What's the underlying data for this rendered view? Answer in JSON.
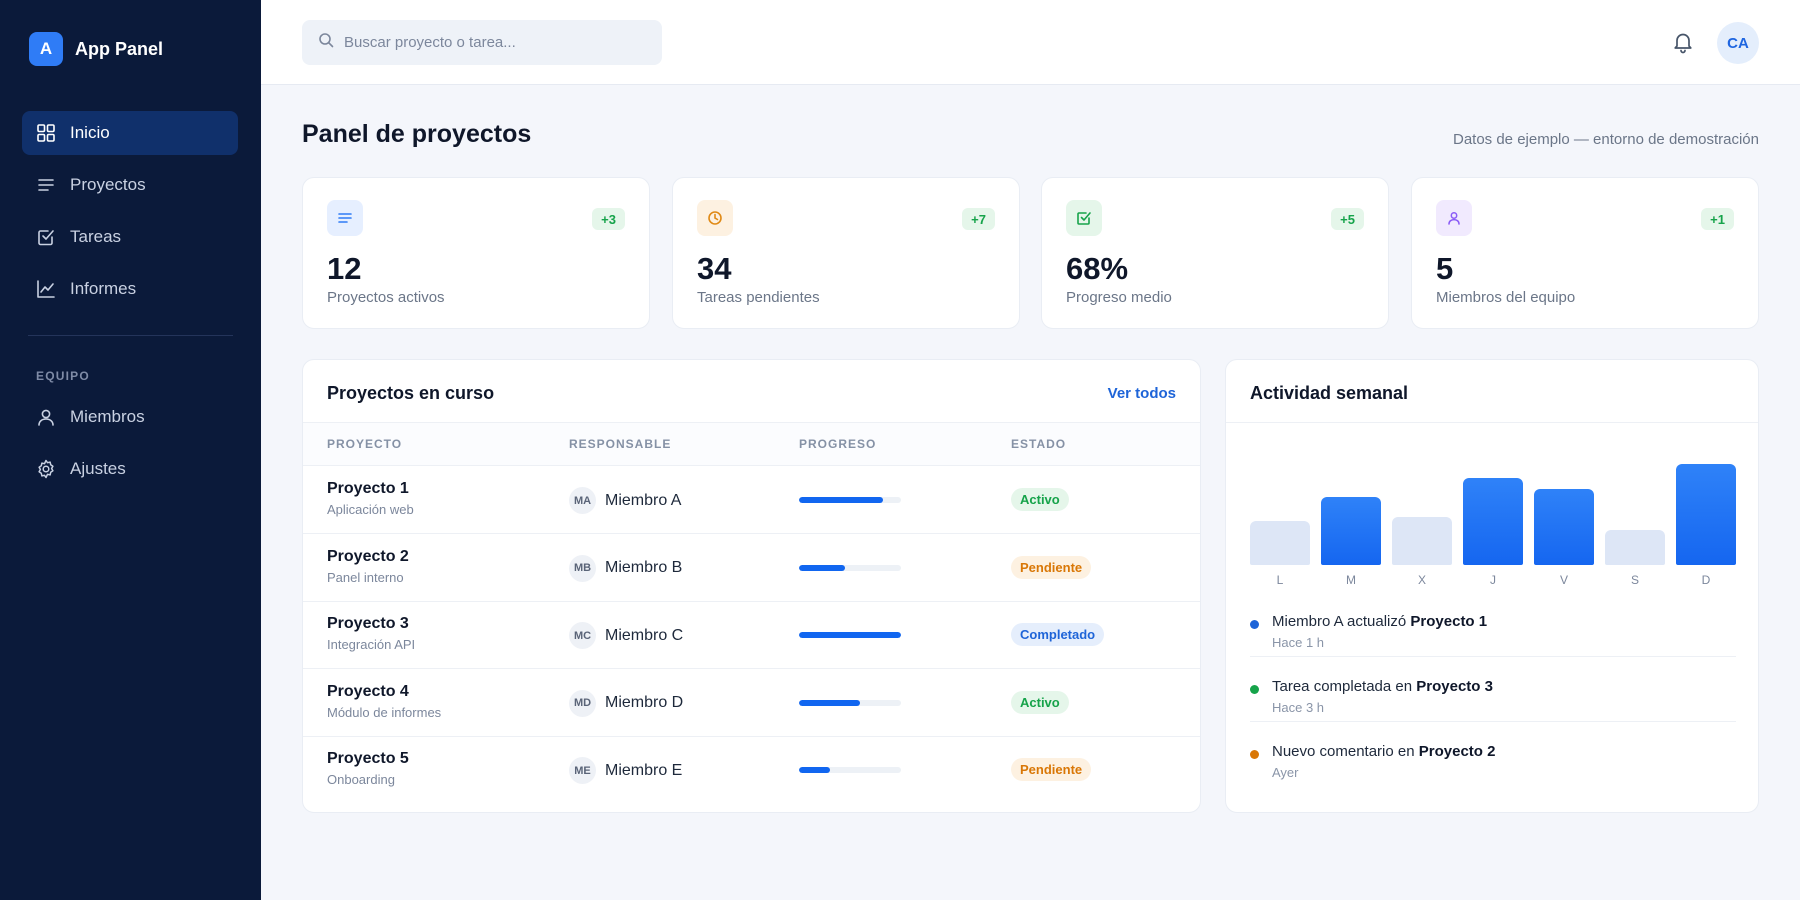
{
  "brand": {
    "logo_letter": "A",
    "name": "App Panel"
  },
  "sidebar": {
    "items": [
      {
        "label": "Inicio",
        "icon": "grid-icon",
        "active": true
      },
      {
        "label": "Proyectos",
        "icon": "list-icon"
      },
      {
        "label": "Tareas",
        "icon": "checkbox-icon"
      },
      {
        "label": "Informes",
        "icon": "chart-line-icon"
      }
    ],
    "section_label": "EQUIPO",
    "team_items": [
      {
        "label": "Miembros",
        "icon": "user-icon"
      },
      {
        "label": "Ajustes",
        "icon": "gear-icon"
      }
    ]
  },
  "header": {
    "search_placeholder": "Buscar proyecto o tarea...",
    "avatar_initials": "CA"
  },
  "page": {
    "title": "Panel de proyectos",
    "note": "Datos de ejemplo — entorno de demostración"
  },
  "stats": [
    {
      "value": "12",
      "label": "Proyectos activos",
      "delta": "+3",
      "icon": "list-icon",
      "color": "#2f7cf6"
    },
    {
      "value": "34",
      "label": "Tareas pendientes",
      "delta": "+7",
      "icon": "clock-icon",
      "color": "#e08a16"
    },
    {
      "value": "68%",
      "label": "Progreso medio",
      "delta": "+5",
      "icon": "checkbox-icon",
      "color": "#16a34a"
    },
    {
      "value": "5",
      "label": "Miembros del equipo",
      "delta": "+1",
      "icon": "user-icon",
      "color": "#8b5cf6"
    }
  ],
  "projects": {
    "title": "Proyectos en curso",
    "view_all": "Ver todos",
    "columns": [
      "PROYECTO",
      "RESPONSABLE",
      "PROGRESO",
      "ESTADO"
    ],
    "rows": [
      {
        "name": "Proyecto 1",
        "sub": "Aplicación web",
        "initials": "MA",
        "owner": "Miembro A",
        "progress": 0.82,
        "status": "Activo",
        "status_kind": "activo"
      },
      {
        "name": "Proyecto 2",
        "sub": "Panel interno",
        "initials": "MB",
        "owner": "Miembro B",
        "progress": 0.45,
        "status": "Pendiente",
        "status_kind": "pend"
      },
      {
        "name": "Proyecto 3",
        "sub": "Integración API",
        "initials": "MC",
        "owner": "Miembro C",
        "progress": 1.0,
        "status": "Completado",
        "status_kind": "comp"
      },
      {
        "name": "Proyecto 4",
        "sub": "Módulo de informes",
        "initials": "MD",
        "owner": "Miembro D",
        "progress": 0.6,
        "status": "Activo",
        "status_kind": "activo"
      },
      {
        "name": "Proyecto 5",
        "sub": "Onboarding",
        "initials": "ME",
        "owner": "Miembro E",
        "progress": 0.3,
        "status": "Pendiente",
        "status_kind": "pend"
      }
    ]
  },
  "activity": {
    "title": "Actividad semanal",
    "chart_data": {
      "type": "bar",
      "categories": [
        "L",
        "M",
        "X",
        "J",
        "V",
        "S",
        "D"
      ],
      "values": [
        42,
        65,
        46,
        83,
        72,
        33,
        96
      ],
      "highlighted": [
        false,
        true,
        false,
        true,
        true,
        false,
        true
      ],
      "ylim": [
        0,
        100
      ]
    },
    "feed": [
      {
        "text": "Miembro A actualizó ",
        "strong": "Proyecto 1",
        "time": "Hace 1 h",
        "dot_color": "#1e64d8"
      },
      {
        "text": "Tarea completada en ",
        "strong": "Proyecto 3",
        "time": "Hace 3 h",
        "dot_color": "#16a34a"
      },
      {
        "text": "Nuevo comentario en ",
        "strong": "Proyecto 2",
        "time": "Ayer",
        "dot_color": "#d97706"
      }
    ]
  }
}
